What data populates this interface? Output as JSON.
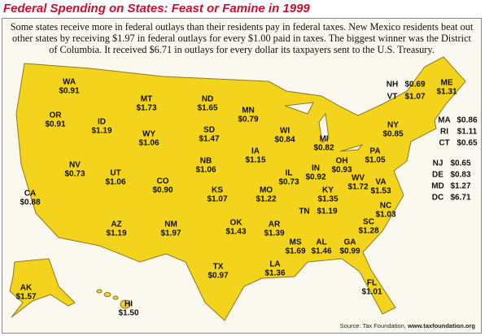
{
  "header": {
    "title": "Federal Spending on States: Feast or Famine in 1999",
    "intro": "Some states receive more in federal outlays than their residents pay in federal taxes. New Mexico residents beat out other states by receiving $1.97 in federal outlays for every $1.00 paid in taxes. The biggest winner was the District of Columbia. It received $6.71 in outlays for every dollar its taxpayers sent to the U.S. Treasury."
  },
  "states": [
    {
      "abbr": "WA",
      "value": "$0.91"
    },
    {
      "abbr": "OR",
      "value": "$0.91"
    },
    {
      "abbr": "ID",
      "value": "$1.19"
    },
    {
      "abbr": "MT",
      "value": "$1.73"
    },
    {
      "abbr": "ND",
      "value": "$1.65"
    },
    {
      "abbr": "MN",
      "value": "$0.79"
    },
    {
      "abbr": "WI",
      "value": "$0.84"
    },
    {
      "abbr": "MI",
      "value": "$0.82"
    },
    {
      "abbr": "SD",
      "value": "$1.47"
    },
    {
      "abbr": "WY",
      "value": "$1.06"
    },
    {
      "abbr": "NV",
      "value": "$0.73"
    },
    {
      "abbr": "UT",
      "value": "$1.06"
    },
    {
      "abbr": "CO",
      "value": "$0.90"
    },
    {
      "abbr": "NB",
      "value": "$1.06"
    },
    {
      "abbr": "IA",
      "value": "$1.15"
    },
    {
      "abbr": "IL",
      "value": "$0.73"
    },
    {
      "abbr": "IN",
      "value": "$0.92"
    },
    {
      "abbr": "OH",
      "value": "$0.93"
    },
    {
      "abbr": "CA",
      "value": "$0.88"
    },
    {
      "abbr": "KS",
      "value": "$1.07"
    },
    {
      "abbr": "MO",
      "value": "$1.22"
    },
    {
      "abbr": "KY",
      "value": "$1.35"
    },
    {
      "abbr": "WV",
      "value": "$1.72"
    },
    {
      "abbr": "VA",
      "value": "$1.53"
    },
    {
      "abbr": "PA",
      "value": "$1.05"
    },
    {
      "abbr": "NY",
      "value": "$0.85"
    },
    {
      "abbr": "ME",
      "value": "$1.31"
    },
    {
      "abbr": "NH",
      "value": "$0.69"
    },
    {
      "abbr": "VT",
      "value": "$1.07"
    },
    {
      "abbr": "MA",
      "value": "$0.86"
    },
    {
      "abbr": "RI",
      "value": "$1.11"
    },
    {
      "abbr": "CT",
      "value": "$0.65"
    },
    {
      "abbr": "NJ",
      "value": "$0.65"
    },
    {
      "abbr": "DE",
      "value": "$0.83"
    },
    {
      "abbr": "MD",
      "value": "$1.27"
    },
    {
      "abbr": "DC",
      "value": "$6.71"
    },
    {
      "abbr": "NC",
      "value": "$1.03"
    },
    {
      "abbr": "TN",
      "value": "$1.19"
    },
    {
      "abbr": "SC",
      "value": "$1.28"
    },
    {
      "abbr": "AZ",
      "value": "$1.19"
    },
    {
      "abbr": "NM",
      "value": "$1.97"
    },
    {
      "abbr": "OK",
      "value": "$1.43"
    },
    {
      "abbr": "AR",
      "value": "$1.39"
    },
    {
      "abbr": "MS",
      "value": "$1.69"
    },
    {
      "abbr": "AL",
      "value": "$1.46"
    },
    {
      "abbr": "GA",
      "value": "$0.99"
    },
    {
      "abbr": "TX",
      "value": "$0.97"
    },
    {
      "abbr": "LA",
      "value": "$1.36"
    },
    {
      "abbr": "FL",
      "value": "$1.01"
    },
    {
      "abbr": "AK",
      "value": "$1.57"
    },
    {
      "abbr": "HI",
      "value": "$1.50"
    }
  ],
  "source": {
    "text": "Source: Tax Foundation,",
    "url": "www.taxfoundation.org"
  }
}
